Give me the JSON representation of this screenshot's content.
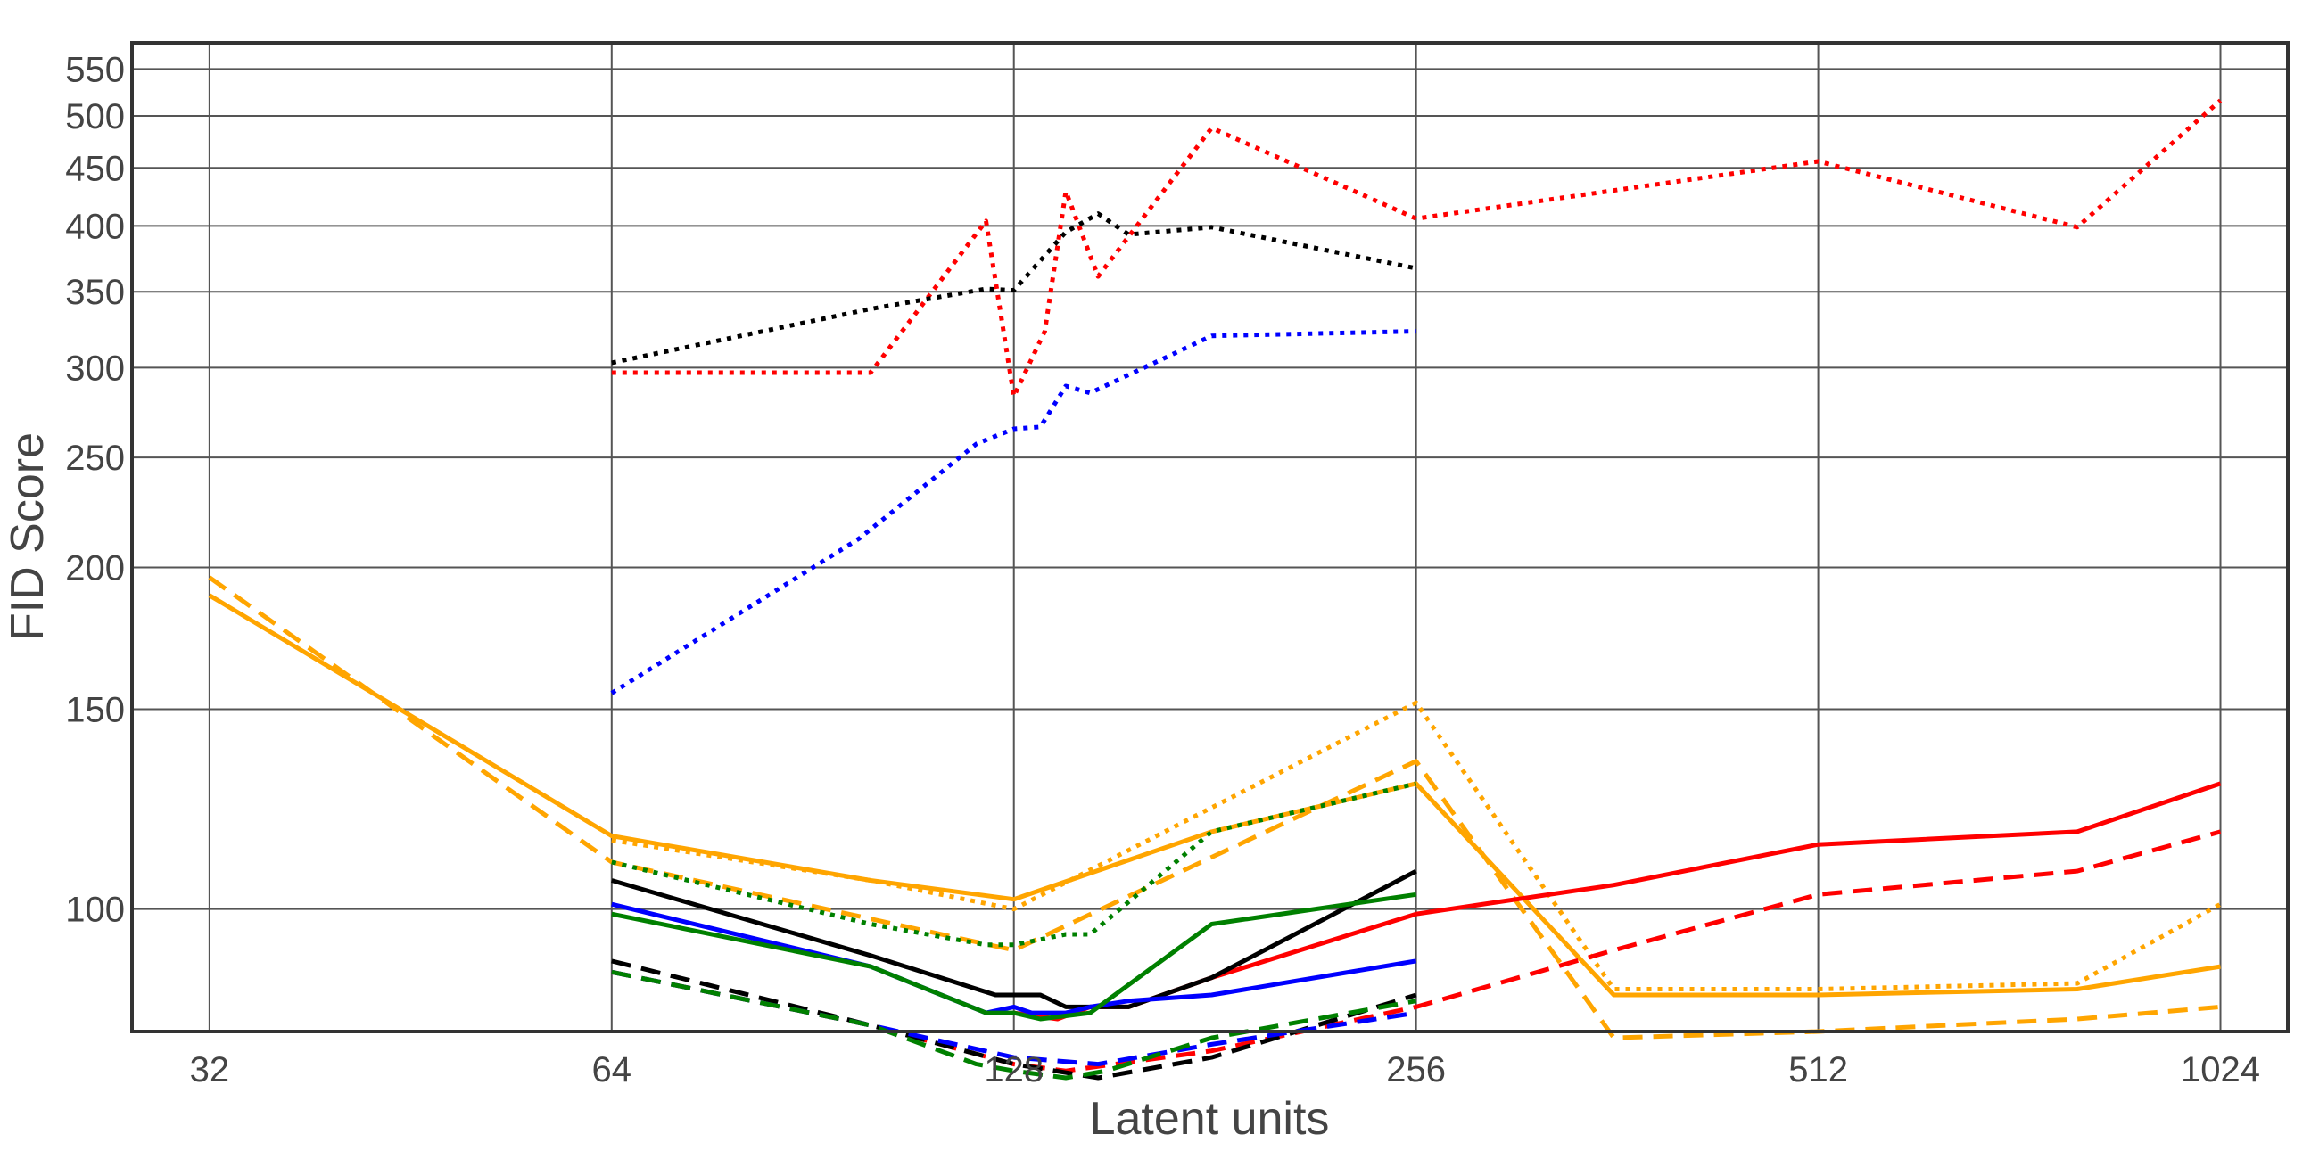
{
  "chart_data": {
    "type": "line",
    "xlabel": "Latent units",
    "ylabel": "FID Score",
    "x_scale": "log2",
    "y_scale": "log",
    "xlim": [
      28,
      1150
    ],
    "ylim": [
      78,
      580
    ],
    "xticks": [
      32,
      64,
      128,
      256,
      512,
      1024
    ],
    "yticks": [
      100,
      150,
      200,
      250,
      300,
      350,
      400,
      450,
      500,
      550
    ],
    "grid": true,
    "series": [
      {
        "color": "#ff0000",
        "style": "dotted",
        "x": [
          64,
          100,
          122,
          128,
          135,
          140,
          148,
          180,
          256,
          512,
          800,
          1024
        ],
        "y": [
          297,
          297,
          404,
          283,
          323,
          429,
          361,
          488,
          406,
          456,
          399,
          516
        ]
      },
      {
        "color": "#000000",
        "style": "dotted",
        "x": [
          64,
          100,
          122,
          128,
          140,
          148,
          156,
          180,
          256
        ],
        "y": [
          303,
          338,
          352,
          351,
          395,
          410,
          393,
          399,
          367
        ]
      },
      {
        "color": "#0000ff",
        "style": "dotted",
        "x": [
          64,
          98,
          120,
          128,
          134,
          140,
          146,
          180,
          256
        ],
        "y": [
          155,
          212,
          257,
          265,
          266,
          289,
          285,
          320,
          323
        ]
      },
      {
        "color": "#ffa500",
        "style": "solid",
        "x": [
          32,
          64,
          100,
          128,
          180,
          256,
          360,
          512,
          800,
          1024
        ],
        "y": [
          189,
          116,
          106,
          102,
          117,
          129,
          84,
          84,
          85,
          89
        ]
      },
      {
        "color": "#ffa500",
        "style": "dashed",
        "x": [
          32,
          64,
          128,
          256,
          360,
          512,
          800,
          1024
        ],
        "y": [
          196,
          110,
          92,
          135,
          77,
          78,
          80,
          82
        ]
      },
      {
        "color": "#ffa500",
        "style": "dotted",
        "x": [
          64,
          100,
          128,
          256,
          360,
          512,
          800,
          1024
        ],
        "y": [
          115,
          106,
          100,
          152,
          85,
          85,
          86,
          101
        ]
      },
      {
        "color": "#ff0000",
        "style": "solid",
        "x": [
          128,
          138,
          146,
          156,
          180,
          256,
          360,
          512,
          800,
          1024
        ],
        "y": [
          81,
          80,
          82,
          82,
          87,
          99,
          105,
          114,
          117,
          129
        ]
      },
      {
        "color": "#ff0000",
        "style": "dashed",
        "x": [
          64,
          100,
          128,
          140,
          180,
          256,
          360,
          512,
          800,
          1024
        ],
        "y": [
          88,
          79,
          73,
          72,
          75,
          82,
          92,
          103,
          108,
          117
        ]
      },
      {
        "color": "#000000",
        "style": "solid",
        "x": [
          64,
          100,
          124,
          128,
          134,
          140,
          148,
          156,
          180,
          256
        ],
        "y": [
          106,
          91,
          84,
          84,
          84,
          82,
          82,
          82,
          87,
          108
        ]
      },
      {
        "color": "#000000",
        "style": "dashed",
        "x": [
          64,
          100,
          128,
          148,
          180,
          256
        ],
        "y": [
          90,
          79,
          73,
          71,
          74,
          84
        ]
      },
      {
        "color": "#0000ff",
        "style": "solid",
        "x": [
          64,
          100,
          122,
          128,
          132,
          140,
          146,
          156,
          180,
          256
        ],
        "y": [
          101,
          89,
          81,
          82,
          81,
          81,
          82,
          83,
          84,
          90
        ]
      },
      {
        "color": "#0000ff",
        "style": "dashed",
        "x": [
          64,
          100,
          128,
          148,
          180,
          256
        ],
        "y": [
          88,
          79,
          74,
          73,
          76,
          81
        ]
      },
      {
        "color": "#008000",
        "style": "solid",
        "x": [
          64,
          100,
          122,
          128,
          134,
          146,
          180,
          256
        ],
        "y": [
          99,
          89,
          81,
          81,
          80,
          81,
          97,
          103
        ]
      },
      {
        "color": "#008000",
        "style": "dashed",
        "x": [
          64,
          100,
          120,
          128,
          140,
          150,
          180,
          256
        ],
        "y": [
          88,
          79,
          73,
          72,
          71,
          72,
          77,
          83
        ]
      },
      {
        "color": "#008000",
        "style": "dotted",
        "x": [
          64,
          100,
          122,
          128,
          140,
          146,
          180,
          256
        ],
        "y": [
          110,
          97,
          93,
          93,
          95,
          95,
          117,
          129
        ]
      }
    ]
  }
}
